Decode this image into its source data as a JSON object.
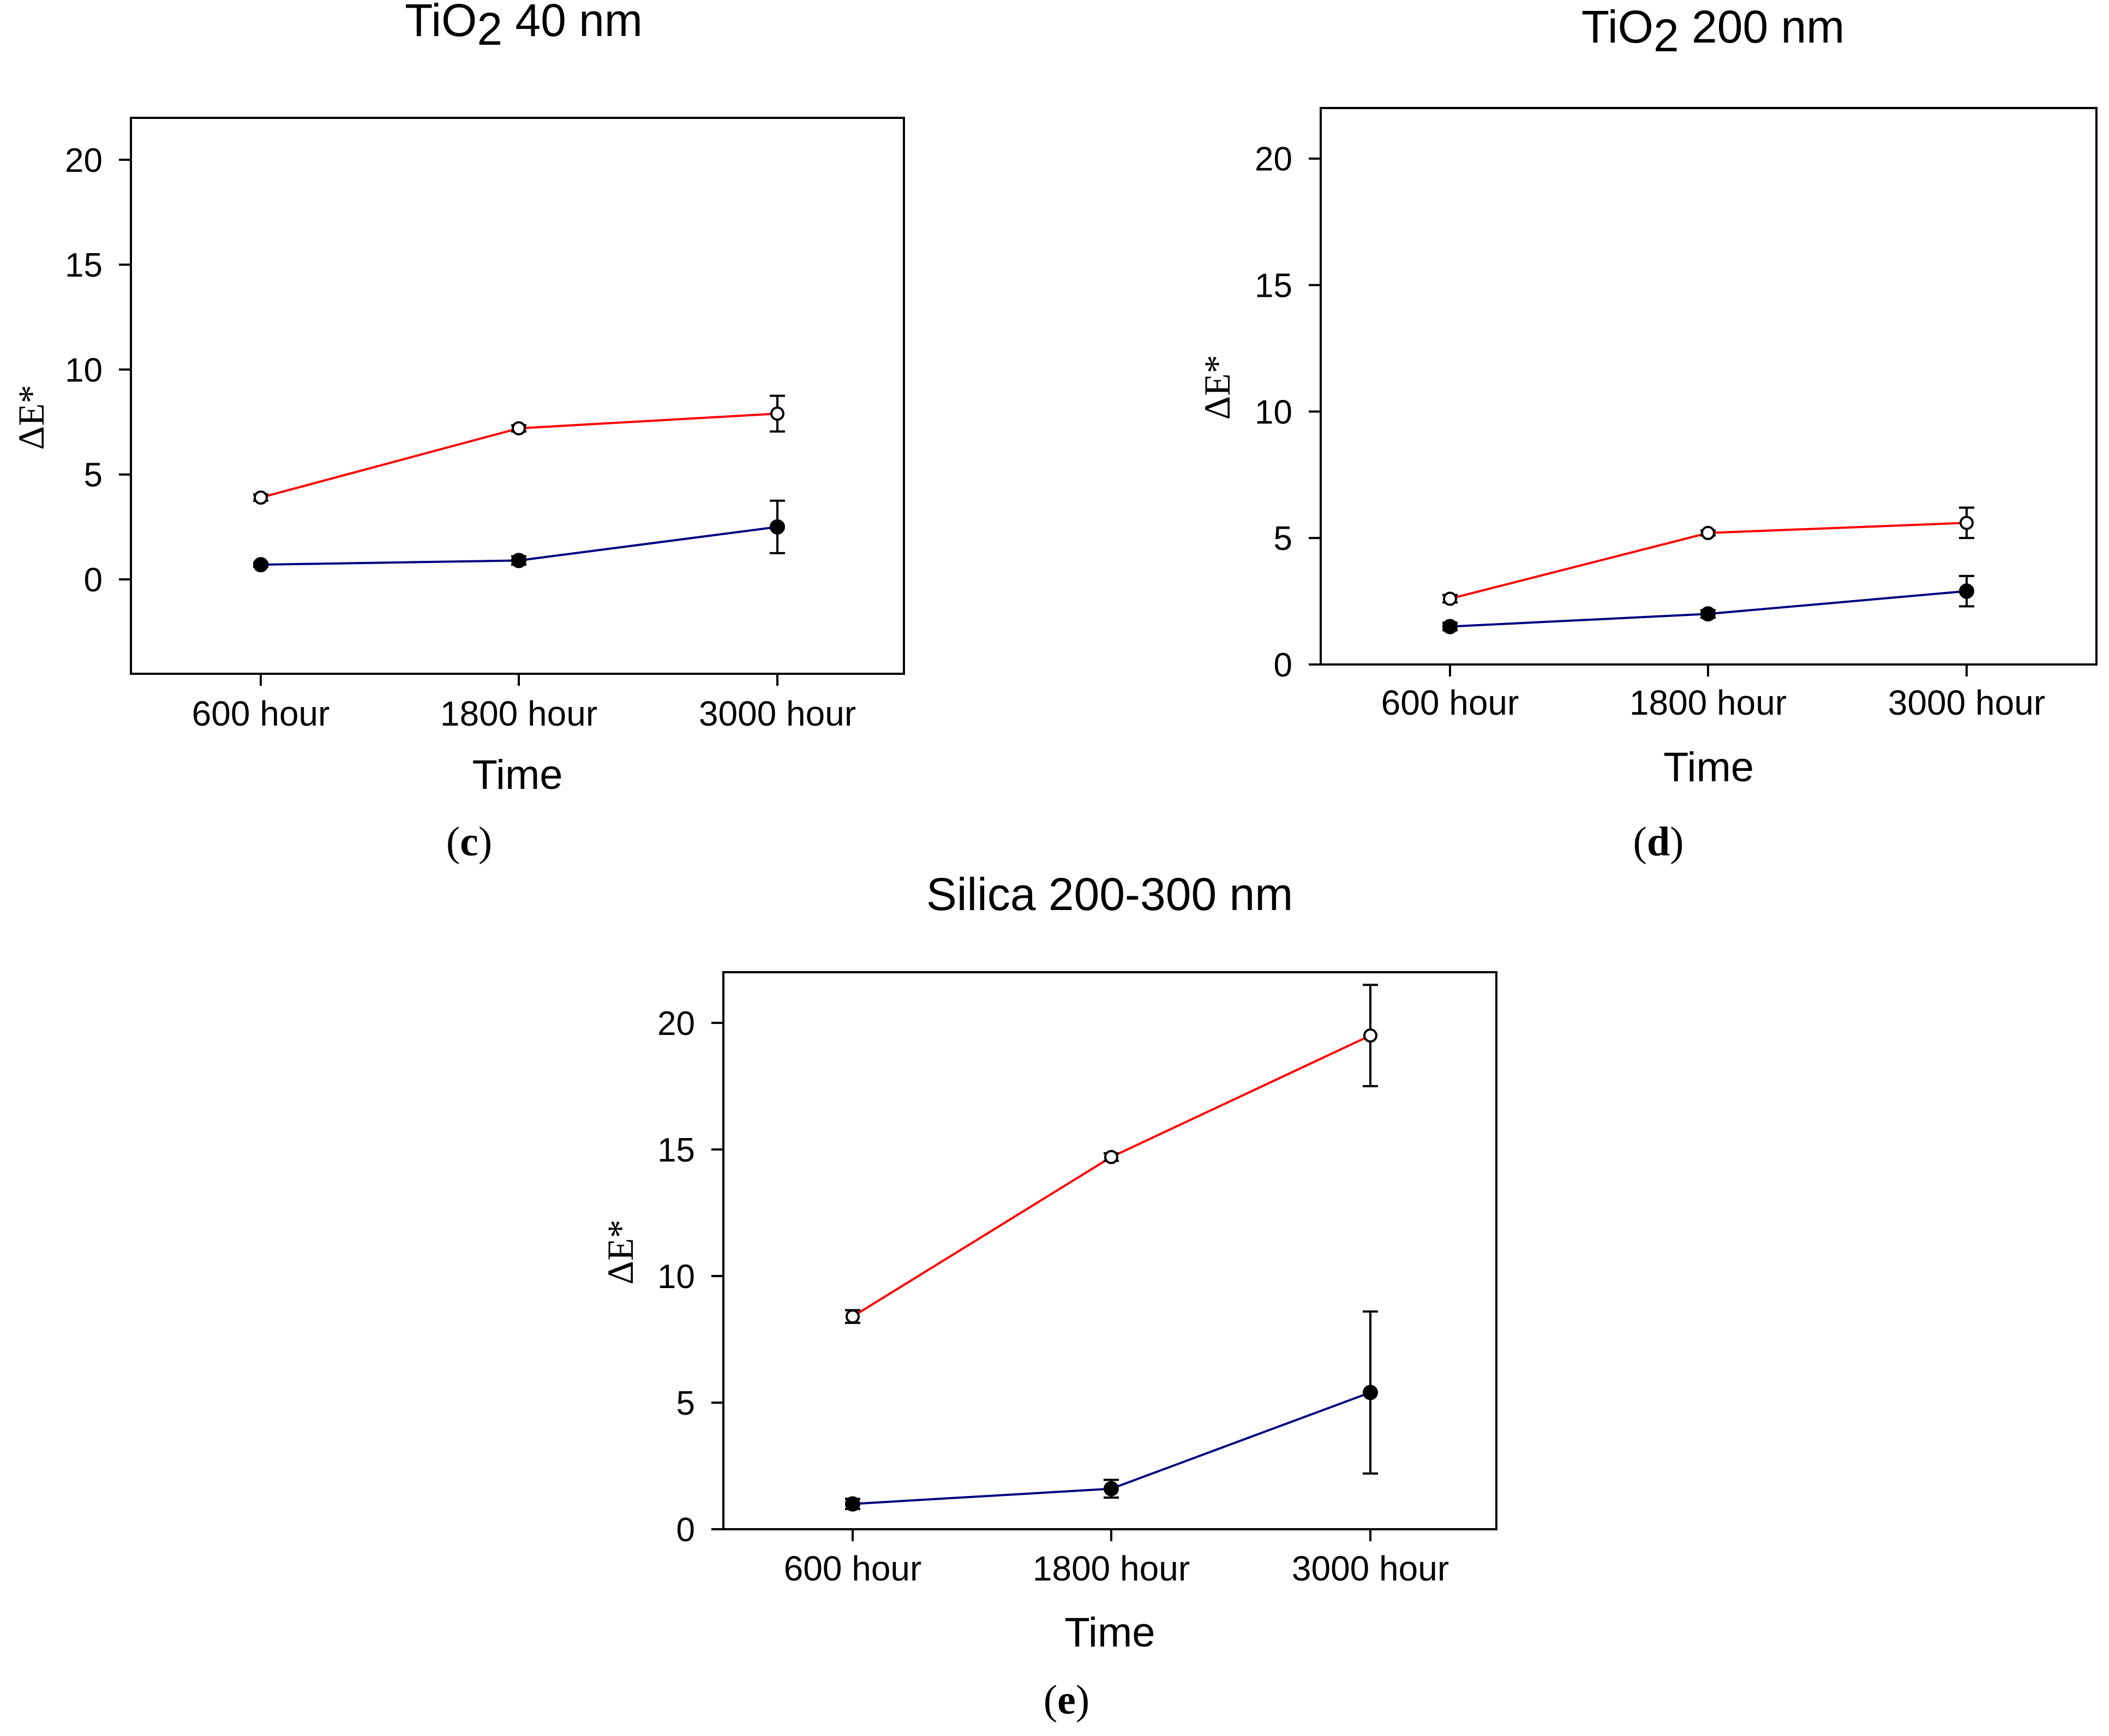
{
  "chart_data": [
    {
      "id": "c",
      "type": "line",
      "panel_label": "c",
      "title_main": "TiO",
      "title_sub": "2",
      "title_rest": " 40 nm",
      "xlabel": "Time",
      "ylabel": "ΔE*",
      "categories": [
        "600 hour",
        "1800 hour",
        "3000 hour"
      ],
      "ylim": [
        -4.5,
        22
      ],
      "yticks": [
        "0",
        "5",
        "10",
        "15",
        "20"
      ],
      "grid": false,
      "series": [
        {
          "name": "open-circle series",
          "color": "#ff0000",
          "marker": "open",
          "values": [
            3.9,
            7.2,
            7.9
          ],
          "errors": [
            0.15,
            0.15,
            0.85
          ]
        },
        {
          "name": "filled-circle series",
          "color": "#000080",
          "marker": "filled",
          "values": [
            0.7,
            0.9,
            2.5
          ],
          "errors": [
            0.1,
            0.2,
            1.25
          ]
        }
      ]
    },
    {
      "id": "d",
      "type": "line",
      "panel_label": "d",
      "title_main": "TiO",
      "title_sub": "2",
      "title_rest": " 200 nm",
      "xlabel": "Time",
      "ylabel": "ΔE*",
      "categories": [
        "600 hour",
        "1800 hour",
        "3000 hour"
      ],
      "ylim": [
        0,
        22
      ],
      "yticks": [
        "0",
        "5",
        "10",
        "15",
        "20"
      ],
      "grid": false,
      "series": [
        {
          "name": "open-circle series",
          "color": "#ff0000",
          "marker": "open",
          "values": [
            2.6,
            5.2,
            5.6
          ],
          "errors": [
            0.15,
            0.1,
            0.6
          ]
        },
        {
          "name": "filled-circle series",
          "color": "#000080",
          "marker": "filled",
          "values": [
            1.5,
            2.0,
            2.9
          ],
          "errors": [
            0.15,
            0.15,
            0.6
          ]
        }
      ]
    },
    {
      "id": "e",
      "type": "line",
      "panel_label": "e",
      "title_main": "Silica 200-300 nm",
      "title_sub": "",
      "title_rest": "",
      "xlabel": "Time",
      "ylabel": "ΔE*",
      "categories": [
        "600 hour",
        "1800 hour",
        "3000 hour"
      ],
      "ylim": [
        0,
        22
      ],
      "yticks": [
        "0",
        "5",
        "10",
        "15",
        "20"
      ],
      "grid": false,
      "series": [
        {
          "name": "open-circle series",
          "color": "#ff0000",
          "marker": "open",
          "values": [
            8.4,
            14.7,
            19.5
          ],
          "errors": [
            0.25,
            0.15,
            2.0
          ]
        },
        {
          "name": "filled-circle series",
          "color": "#000080",
          "marker": "filled",
          "values": [
            1.0,
            1.6,
            5.4
          ],
          "errors": [
            0.2,
            0.35,
            3.2
          ]
        }
      ]
    }
  ]
}
